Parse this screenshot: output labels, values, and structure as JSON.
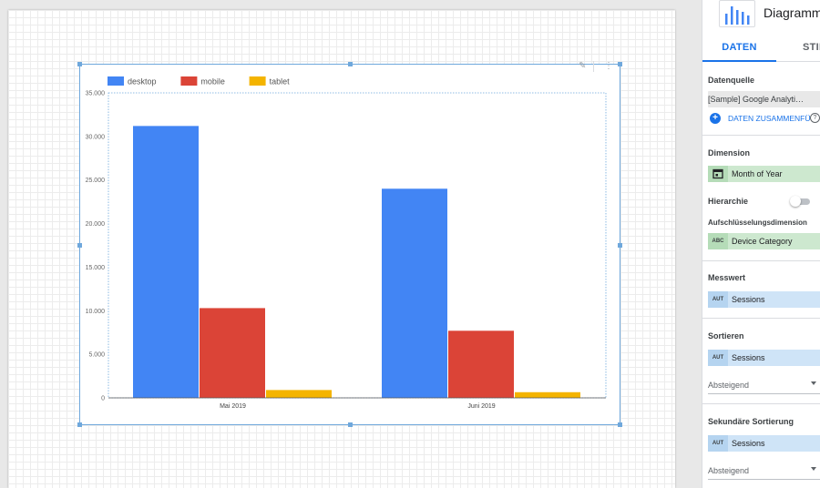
{
  "chart_data": {
    "type": "bar",
    "categories": [
      "Mai 2019",
      "Juni 2019"
    ],
    "series": [
      {
        "name": "desktop",
        "values": [
          31200,
          24000
        ],
        "color": "#4285f4"
      },
      {
        "name": "mobile",
        "values": [
          10300,
          7700
        ],
        "color": "#db4437"
      },
      {
        "name": "tablet",
        "values": [
          900,
          650
        ],
        "color": "#f4b400"
      }
    ],
    "ylim": [
      0,
      35000
    ],
    "y_ticks": [
      0,
      5000,
      10000,
      15000,
      20000,
      25000,
      30000,
      35000
    ],
    "y_tick_labels": [
      "0",
      "5.000",
      "10.000",
      "15.000",
      "20.000",
      "25.000",
      "30.000",
      "35.000"
    ],
    "legend_position": "top-left",
    "grid": false
  },
  "panel": {
    "title": "Diagramm",
    "chart_type_icon": "bar-chart-icon",
    "tabs": [
      "DATEN",
      "STIL"
    ],
    "data_source": {
      "label": "Datenquelle",
      "value": "[Sample] Google Analyti…",
      "merge_label": "DATEN ZUSAMMENFÜ",
      "merge_icon": "add-circle-icon",
      "help_icon": "help-icon"
    },
    "dimension": {
      "label": "Dimension",
      "value": "Month of Year",
      "type_icon": "calendar-icon"
    },
    "hierarchy": {
      "label": "Hierarchie",
      "enabled": false
    },
    "breakdown": {
      "label": "Aufschlüsselungsdimension",
      "value": "Device Category",
      "type": "ABC"
    },
    "metric": {
      "label": "Messwert",
      "value": "Sessions",
      "type": "AUT"
    },
    "sort": {
      "label": "Sortieren",
      "value": "Sessions",
      "type": "AUT",
      "order": "Absteigend"
    },
    "secondary_sort": {
      "label": "Sekundäre Sortierung",
      "value": "Sessions",
      "type": "AUT",
      "order": "Absteigend"
    }
  },
  "chart_tools": {
    "icons": [
      "edit-chart-icon",
      "more-vert-icon"
    ]
  },
  "colors": {
    "accent": "#1a73e8",
    "dimension_chip": "#cde8cf",
    "metric_chip": "#cfe4f7"
  }
}
